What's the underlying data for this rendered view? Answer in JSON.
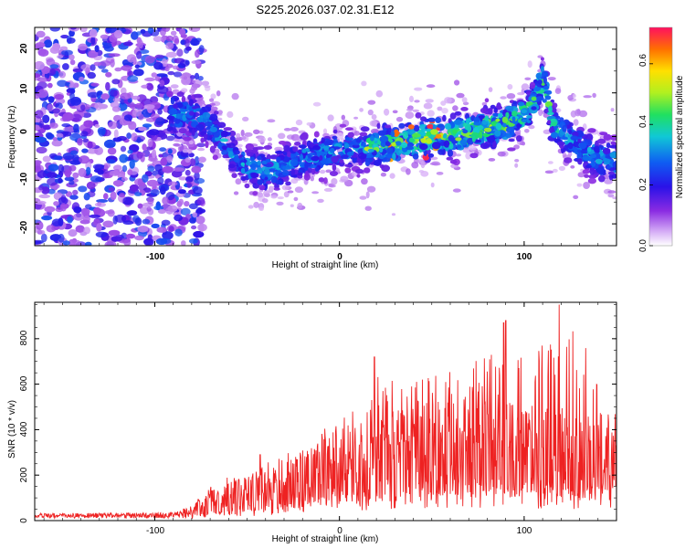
{
  "title": "S225.2026.037.02.31.E12",
  "colors": {
    "snr_line": "#ee2222",
    "frame": "#000000",
    "background": "#ffffff"
  },
  "chart_data": [
    {
      "type": "heatmap",
      "name": "spectrogram",
      "title": "S225.2026.037.02.31.E12",
      "xlabel": "Height of straight line (km)",
      "ylabel": "Frequency (Hz)",
      "xlim": [
        -165,
        150
      ],
      "ylim": [
        -25,
        25
      ],
      "xticks": [
        -100,
        0,
        100
      ],
      "yticks": [
        -20,
        -10,
        0,
        10,
        20
      ],
      "xticklabels": [
        "-100",
        "0",
        "100"
      ],
      "yticklabels": [
        "-20",
        "-10",
        "0",
        "10",
        "20"
      ],
      "ridge": {
        "x": [
          -90,
          -80,
          -70,
          -60,
          -50,
          -40,
          -30,
          -20,
          -10,
          0,
          10,
          20,
          30,
          40,
          50,
          60,
          70,
          80,
          90,
          100,
          105,
          110,
          115,
          120,
          130,
          140,
          150
        ],
        "freq": [
          5,
          5,
          3,
          -3,
          -7,
          -8,
          -7,
          -5,
          -4,
          -3,
          -3,
          -2,
          -2,
          -1,
          0,
          0,
          1,
          2,
          3,
          5,
          8,
          13,
          4,
          1,
          -2,
          -5,
          -6
        ]
      },
      "noise_region_x": [
        -165,
        -80
      ],
      "peak_amplitude": 0.72,
      "colorbar": {
        "label": "Normalized spectral amplitude",
        "range": [
          0,
          0.72
        ],
        "ticks": [
          0.0,
          0.2,
          0.4,
          0.6
        ],
        "ticklabels": [
          "0.0",
          "0.2",
          "0.4",
          "0.6"
        ]
      }
    },
    {
      "type": "line",
      "name": "snr",
      "xlabel": "Height of straight line (km)",
      "ylabel": "SNR (10 * v/v)",
      "xlim": [
        -165,
        150
      ],
      "ylim": [
        0,
        960
      ],
      "xticks": [
        -100,
        0,
        100
      ],
      "yticks": [
        0,
        200,
        400,
        600,
        800
      ],
      "xticklabels": [
        "-100",
        "0",
        "100"
      ],
      "yticklabels": [
        "0",
        "200",
        "400",
        "600",
        "800"
      ],
      "envelope": {
        "x": [
          -165,
          -90,
          -80,
          -70,
          -60,
          -50,
          -40,
          -30,
          -20,
          -10,
          0,
          10,
          20,
          30,
          40,
          50,
          60,
          70,
          80,
          90,
          100,
          110,
          120,
          130,
          140,
          150
        ],
        "mean": [
          20,
          22,
          35,
          70,
          90,
          100,
          110,
          140,
          170,
          180,
          200,
          220,
          240,
          260,
          280,
          270,
          280,
          270,
          280,
          280,
          270,
          260,
          270,
          240,
          250,
          260
        ],
        "peak": [
          35,
          40,
          70,
          150,
          200,
          190,
          260,
          290,
          340,
          390,
          460,
          520,
          680,
          620,
          640,
          660,
          700,
          700,
          760,
          720,
          780,
          770,
          900,
          800,
          760,
          740
        ]
      },
      "max_value": 950,
      "max_at_x": 119
    }
  ]
}
